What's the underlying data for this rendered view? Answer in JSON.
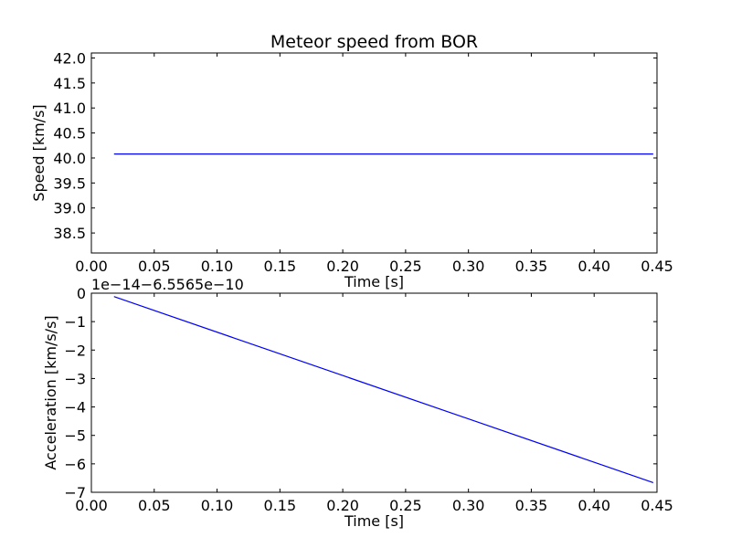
{
  "chart_data": [
    {
      "type": "line",
      "title": "Meteor speed from  BOR",
      "xlabel": "Time [s]",
      "ylabel": "Speed [km/s]",
      "xlim": [
        0.0,
        0.45
      ],
      "ylim": [
        38.1,
        42.1
      ],
      "x_ticks": [
        0.0,
        0.05,
        0.1,
        0.15,
        0.2,
        0.25,
        0.3,
        0.35,
        0.4,
        0.45
      ],
      "x_tick_labels": [
        "0.00",
        "0.05",
        "0.10",
        "0.15",
        "0.20",
        "0.25",
        "0.30",
        "0.35",
        "0.40",
        "0.45"
      ],
      "y_ticks": [
        38.5,
        39.0,
        39.5,
        40.0,
        40.5,
        41.0,
        41.5,
        42.0
      ],
      "y_tick_labels": [
        "38.5",
        "39.0",
        "39.5",
        "40.0",
        "40.5",
        "41.0",
        "41.5",
        "42.0"
      ],
      "grid": false,
      "color": "#0000ff",
      "series": [
        {
          "x": [
            0.018,
            0.447
          ],
          "y": [
            40.08,
            40.08
          ]
        }
      ]
    },
    {
      "type": "line",
      "title": "",
      "xlabel": "Time [s]",
      "ylabel": "Acceleration [km/s/s]",
      "offset_text": "1e−14−6.5565e−10",
      "xlim": [
        0.0,
        0.45
      ],
      "ylim": [
        -7,
        0
      ],
      "x_ticks": [
        0.0,
        0.05,
        0.1,
        0.15,
        0.2,
        0.25,
        0.3,
        0.35,
        0.4,
        0.45
      ],
      "x_tick_labels": [
        "0.00",
        "0.05",
        "0.10",
        "0.15",
        "0.20",
        "0.25",
        "0.30",
        "0.35",
        "0.40",
        "0.45"
      ],
      "y_ticks": [
        0,
        -1,
        -2,
        -3,
        -4,
        -5,
        -6,
        -7
      ],
      "y_tick_labels": [
        "0",
        "−1",
        "−2",
        "−3",
        "−4",
        "−5",
        "−6",
        "−7"
      ],
      "grid": false,
      "color": "#0000ff",
      "series": [
        {
          "x": [
            0.018,
            0.447
          ],
          "y": [
            -0.12,
            -6.66
          ]
        }
      ]
    }
  ]
}
